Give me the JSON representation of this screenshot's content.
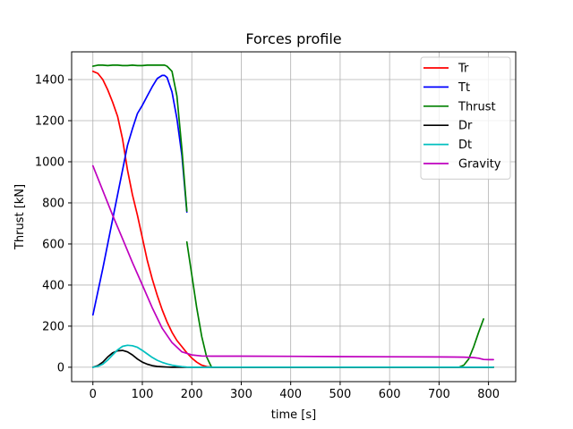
{
  "chart_data": {
    "type": "line",
    "title": "Forces profile",
    "xlabel": "time [s]",
    "ylabel": "Thrust [kN]",
    "xlim": [
      -43,
      855
    ],
    "ylim": [
      -70,
      1535
    ],
    "xticks": [
      0,
      100,
      200,
      300,
      400,
      500,
      600,
      700,
      800
    ],
    "yticks": [
      0,
      200,
      400,
      600,
      800,
      1000,
      1200,
      1400
    ],
    "grid": true,
    "legend_position": "top-right",
    "series": [
      {
        "name": "Tr",
        "color": "#ff0000",
        "segments": [
          [
            [
              0,
              1440
            ],
            [
              10,
              1430
            ],
            [
              20,
              1400
            ],
            [
              30,
              1350
            ],
            [
              40,
              1290
            ],
            [
              50,
              1220
            ],
            [
              60,
              1110
            ],
            [
              70,
              960
            ],
            [
              80,
              840
            ],
            [
              90,
              740
            ],
            [
              100,
              630
            ],
            [
              110,
              520
            ],
            [
              120,
              430
            ],
            [
              130,
              350
            ],
            [
              140,
              280
            ],
            [
              150,
              220
            ],
            [
              160,
              170
            ],
            [
              170,
              130
            ],
            [
              180,
              100
            ],
            [
              190,
              70
            ],
            [
              200,
              45
            ],
            [
              210,
              25
            ],
            [
              220,
              10
            ],
            [
              230,
              3
            ],
            [
              240,
              0
            ],
            [
              300,
              0
            ],
            [
              400,
              0
            ],
            [
              500,
              0
            ],
            [
              600,
              0
            ],
            [
              700,
              0
            ],
            [
              800,
              0
            ],
            [
              810,
              0
            ]
          ]
        ]
      },
      {
        "name": "Tt",
        "color": "#0000ff",
        "segments": [
          [
            [
              0,
              255
            ],
            [
              20,
              480
            ],
            [
              40,
              720
            ],
            [
              60,
              960
            ],
            [
              70,
              1080
            ],
            [
              80,
              1160
            ],
            [
              90,
              1235
            ],
            [
              100,
              1275
            ],
            [
              110,
              1320
            ],
            [
              120,
              1365
            ],
            [
              130,
              1405
            ],
            [
              140,
              1420
            ],
            [
              145,
              1420
            ],
            [
              150,
              1410
            ],
            [
              160,
              1340
            ],
            [
              170,
              1210
            ],
            [
              180,
              1030
            ],
            [
              190,
              755
            ]
          ]
        ]
      },
      {
        "name": "Thrust",
        "color": "#008000",
        "segments": [
          [
            [
              0,
              1465
            ],
            [
              10,
              1470
            ],
            [
              20,
              1470
            ],
            [
              30,
              1468
            ],
            [
              40,
              1470
            ],
            [
              50,
              1470
            ],
            [
              60,
              1468
            ],
            [
              70,
              1468
            ],
            [
              80,
              1470
            ],
            [
              90,
              1468
            ],
            [
              100,
              1468
            ],
            [
              110,
              1470
            ],
            [
              120,
              1470
            ],
            [
              130,
              1470
            ],
            [
              140,
              1470
            ],
            [
              145,
              1470
            ],
            [
              150,
              1465
            ],
            [
              160,
              1440
            ],
            [
              170,
              1320
            ],
            [
              180,
              1060
            ],
            [
              190,
              760
            ]
          ],
          [
            [
              190,
              610
            ],
            [
              200,
              450
            ],
            [
              210,
              290
            ],
            [
              220,
              150
            ],
            [
              230,
              50
            ],
            [
              240,
              0
            ],
            [
              300,
              0
            ],
            [
              400,
              0
            ],
            [
              500,
              0
            ],
            [
              600,
              0
            ],
            [
              700,
              0
            ],
            [
              740,
              0
            ],
            [
              750,
              10
            ],
            [
              760,
              40
            ],
            [
              770,
              100
            ],
            [
              780,
              170
            ],
            [
              790,
              235
            ]
          ],
          [
            [
              790,
              0
            ],
            [
              810,
              0
            ]
          ]
        ]
      },
      {
        "name": "Dr",
        "color": "#000000",
        "segments": [
          [
            [
              0,
              0
            ],
            [
              10,
              8
            ],
            [
              20,
              25
            ],
            [
              30,
              50
            ],
            [
              40,
              70
            ],
            [
              50,
              80
            ],
            [
              60,
              82
            ],
            [
              70,
              75
            ],
            [
              80,
              60
            ],
            [
              90,
              40
            ],
            [
              100,
              25
            ],
            [
              110,
              15
            ],
            [
              120,
              8
            ],
            [
              130,
              4
            ],
            [
              140,
              2
            ],
            [
              150,
              1
            ],
            [
              160,
              0
            ],
            [
              810,
              0
            ]
          ]
        ]
      },
      {
        "name": "Dt",
        "color": "#00bfbf",
        "segments": [
          [
            [
              0,
              0
            ],
            [
              10,
              5
            ],
            [
              20,
              15
            ],
            [
              30,
              35
            ],
            [
              40,
              60
            ],
            [
              50,
              85
            ],
            [
              60,
              102
            ],
            [
              70,
              107
            ],
            [
              80,
              105
            ],
            [
              90,
              97
            ],
            [
              100,
              82
            ],
            [
              110,
              65
            ],
            [
              120,
              48
            ],
            [
              130,
              34
            ],
            [
              140,
              24
            ],
            [
              150,
              16
            ],
            [
              160,
              10
            ],
            [
              170,
              6
            ],
            [
              180,
              3
            ],
            [
              190,
              1
            ],
            [
              200,
              0
            ],
            [
              810,
              0
            ]
          ]
        ]
      },
      {
        "name": "Gravity",
        "color": "#bf00bf",
        "segments": [
          [
            [
              0,
              980
            ],
            [
              20,
              860
            ],
            [
              40,
              740
            ],
            [
              60,
              625
            ],
            [
              80,
              510
            ],
            [
              100,
              400
            ],
            [
              120,
              290
            ],
            [
              140,
              190
            ],
            [
              160,
              120
            ],
            [
              180,
              75
            ],
            [
              200,
              60
            ],
            [
              220,
              55
            ],
            [
              240,
              54
            ],
            [
              300,
              54
            ],
            [
              400,
              53
            ],
            [
              500,
              52
            ],
            [
              600,
              51
            ],
            [
              700,
              50
            ],
            [
              750,
              49
            ],
            [
              770,
              47
            ],
            [
              780,
              44
            ],
            [
              790,
              38
            ],
            [
              800,
              37
            ],
            [
              810,
              37
            ]
          ]
        ]
      }
    ]
  }
}
